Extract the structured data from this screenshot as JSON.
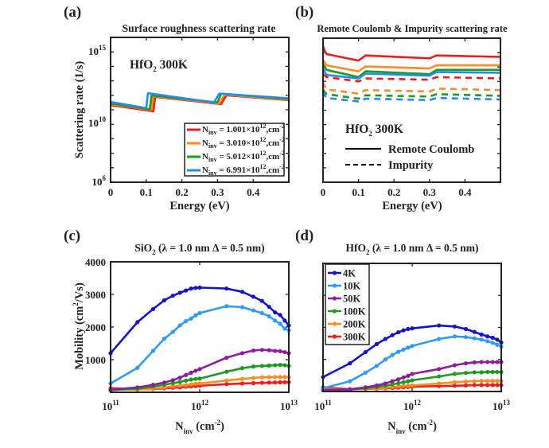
{
  "panels": {
    "a": {
      "label": "(a)",
      "title": "Surface roughness scattering rate",
      "annotation": {
        "main": "HfO",
        "sub": "2",
        "rest": " 300K"
      }
    },
    "b": {
      "label": "(b)",
      "title": "Remote Coulomb & Impurity scattering rate",
      "annotation": {
        "main": "HfO",
        "sub": "2",
        "rest": " 300K"
      }
    },
    "c": {
      "label": "(c)",
      "title": {
        "main": "SiO",
        "sub": "2",
        "rest": " (λ = 1.0 nm Δ = 0.5 nm)"
      }
    },
    "d": {
      "label": "(d)",
      "title": {
        "main": "HfO",
        "sub": "2",
        "rest": " (λ = 1.0 nm Δ = 0.5 nm)"
      }
    }
  },
  "chart_data": [
    {
      "panel": "a",
      "type": "line",
      "title": "Surface roughness scattering rate",
      "xlabel": "Energy (eV)",
      "ylabel": "Scattering rate (1/s)",
      "xlim": [
        0,
        0.5
      ],
      "ylim": [
        1000000.0,
        1e+16
      ],
      "yscale": "log",
      "xticks": [
        "0",
        "0.1",
        "0.2",
        "0.3",
        "0.4"
      ],
      "yticks": [
        {
          "base": "10",
          "exp": "6"
        },
        {
          "base": "10",
          "exp": "10"
        },
        {
          "base": "10",
          "exp": "15"
        }
      ],
      "legend_position": "bottom-right",
      "series": [
        {
          "name": {
            "main": "N",
            "sub": "inv",
            "value": " = 1.001×10",
            "exp": "12",
            "unit": ",cm",
            "unit_exp": "-2"
          },
          "color": "#ee1c1c",
          "x": [
            0,
            0.12,
            0.125,
            0.31,
            0.325,
            0.5
          ],
          "y": [
            210000000000.0,
            79000000000.0,
            790000000000.0,
            250000000000.0,
            1000000000000.0,
            470000000000.0
          ]
        },
        {
          "name": {
            "main": "N",
            "sub": "inv",
            "value": " = 3.010×10",
            "exp": "12",
            "unit": ",cm",
            "unit_exp": "-2"
          },
          "color": "#ff8a1e",
          "x": [
            0,
            0.115,
            0.12,
            0.305,
            0.32,
            0.5
          ],
          "y": [
            250000000000.0,
            100000000000.0,
            890000000000.0,
            280000000000.0,
            1100000000000.0,
            500000000000.0
          ]
        },
        {
          "name": {
            "main": "N",
            "sub": "inv",
            "value": " = 5.012×10",
            "exp": "12",
            "unit": ",cm",
            "unit_exp": "-2"
          },
          "color": "#1e9a1e",
          "x": [
            0,
            0.11,
            0.115,
            0.3,
            0.31,
            0.5
          ],
          "y": [
            280000000000.0,
            110000000000.0,
            1000000000000.0,
            320000000000.0,
            1300000000000.0,
            560000000000.0
          ]
        },
        {
          "name": {
            "main": "N",
            "sub": "inv",
            "value": " = 6.991×10",
            "exp": "12",
            "unit": ",cm",
            "unit_exp": "-2"
          },
          "color": "#1e8cf0",
          "x": [
            0,
            0.1,
            0.105,
            0.29,
            0.305,
            0.5
          ],
          "y": [
            350000000000.0,
            130000000000.0,
            1400000000000.0,
            320000000000.0,
            1300000000000.0,
            630000000000.0
          ]
        }
      ]
    },
    {
      "panel": "b",
      "type": "line",
      "title": "Remote Coulomb & Impurity scattering rate",
      "xlabel": "Energy (eV)",
      "xlim": [
        0,
        0.5
      ],
      "ylim": [
        1000000.0,
        1e+16
      ],
      "yscale": "log",
      "xticks": [
        "0",
        "0.1",
        "0.2",
        "0.3",
        "0.4"
      ],
      "legend": [
        "Remote Coulomb",
        "Impurity"
      ],
      "legend_position": "bottom-left",
      "x": [
        0,
        0.005,
        0.01,
        0.1,
        0.12,
        0.3,
        0.32,
        0.5
      ],
      "series": [
        {
          "kind": "Remote Coulomb",
          "color": "#ee1c1c",
          "y": [
            2800000000000000.0,
            1300000000000000.0,
            790000000000000.0,
            280000000000000.0,
            630000000000000.0,
            400000000000000.0,
            630000000000000.0,
            500000000000000.0
          ]
        },
        {
          "kind": "Remote Coulomb",
          "color": "#ff8a1e",
          "y": [
            320000000000000.0,
            200000000000000.0,
            130000000000000.0,
            50000000000000.0,
            110000000000000.0,
            79000000000000.0,
            130000000000000.0,
            130000000000000.0
          ]
        },
        {
          "kind": "Remote Coulomb",
          "color": "#1e9a1e",
          "y": [
            160000000000000.0,
            100000000000000.0,
            63000000000000.0,
            20000000000000.0,
            50000000000000.0,
            32000000000000.0,
            63000000000000.0,
            63000000000000.0
          ]
        },
        {
          "kind": "Remote Coulomb",
          "color": "#1e8cf0",
          "y": [
            89000000000000.0,
            45000000000000.0,
            28000000000000.0,
            16000000000000.0,
            35000000000000.0,
            25000000000000.0,
            45000000000000.0,
            40000000000000.0
          ]
        },
        {
          "kind": "Impurity",
          "color": "#ee1c1c",
          "y": [
            32000000000000.0,
            25000000000000.0,
            20000000000000.0,
            10000000000000.0,
            16000000000000.0,
            13000000000000.0,
            20000000000000.0,
            16000000000000.0
          ]
        },
        {
          "kind": "Impurity",
          "color": "#ff8a1e",
          "y": [
            8900000000000.0,
            4500000000000.0,
            2800000000000.0,
            1400000000000.0,
            2500000000000.0,
            2000000000000.0,
            3200000000000.0,
            2500000000000.0
          ]
        },
        {
          "kind": "Impurity",
          "color": "#1e9a1e",
          "y": [
            2800000000000.0,
            1800000000000.0,
            1300000000000.0,
            630000000000.0,
            1100000000000.0,
            890000000000.0,
            1300000000000.0,
            1000000000000.0
          ]
        },
        {
          "kind": "Impurity",
          "color": "#1e8cf0",
          "y": [
            2000000000000.0,
            1000000000000.0,
            710000000000.0,
            400000000000.0,
            630000000000.0,
            500000000000.0,
            710000000000.0,
            560000000000.0
          ]
        }
      ]
    },
    {
      "panel": "c",
      "type": "line",
      "xlabel": {
        "main": "N",
        "sub": "inv",
        "rest": " (cm",
        "exp": "-2",
        "close": ")"
      },
      "ylabel": {
        "main": "Mobility (cm",
        "exp": "2",
        "rest": "/Vs)"
      },
      "xscale": "log",
      "xlim": [
        100000000000.0,
        10000000000000.0
      ],
      "ylim": [
        0,
        4000
      ],
      "xticks": [
        {
          "base": "10",
          "exp": "11"
        },
        {
          "base": "10",
          "exp": "12"
        },
        {
          "base": "10",
          "exp": "13"
        }
      ],
      "yticks": [
        "1000",
        "2000",
        "3000",
        "4000"
      ],
      "x": [
        100000000000.0,
        200000000000.0,
        300000000000.0,
        400000000000.0,
        500000000000.0,
        600000000000.0,
        700000000000.0,
        800000000000.0,
        900000000000.0,
        1000000000000.0,
        2000000000000.0,
        3000000000000.0,
        4000000000000.0,
        5000000000000.0,
        6000000000000.0,
        7000000000000.0,
        8000000000000.0,
        9000000000000.0,
        10000000000000.0
      ],
      "series": [
        {
          "name": "4K",
          "color": "#1414c4",
          "y": [
            1200,
            2150,
            2550,
            2820,
            2960,
            3050,
            3120,
            3180,
            3200,
            3210,
            3180,
            3080,
            2930,
            2800,
            2620,
            2450,
            2370,
            2200,
            2050
          ]
        },
        {
          "name": "10K",
          "color": "#2e9cf2",
          "y": [
            270,
            750,
            1270,
            1640,
            1850,
            2050,
            2180,
            2260,
            2360,
            2430,
            2640,
            2610,
            2510,
            2430,
            2330,
            2200,
            2100,
            1950,
            1900
          ]
        },
        {
          "name": "50K",
          "color": "#8e1c9e",
          "y": [
            80,
            150,
            230,
            300,
            370,
            450,
            530,
            600,
            660,
            710,
            1060,
            1200,
            1280,
            1300,
            1290,
            1270,
            1260,
            1230,
            1200
          ]
        },
        {
          "name": "100K",
          "color": "#1e9a1e",
          "y": [
            60,
            110,
            170,
            230,
            280,
            320,
            360,
            390,
            410,
            420,
            630,
            740,
            790,
            810,
            820,
            830,
            840,
            830,
            810
          ]
        },
        {
          "name": "200K",
          "color": "#ff8a1e",
          "y": [
            100,
            80,
            110,
            150,
            180,
            200,
            220,
            240,
            260,
            270,
            360,
            410,
            440,
            460,
            465,
            470,
            470,
            470,
            460
          ]
        },
        {
          "name": "300K",
          "color": "#ee1c1c",
          "y": [
            130,
            90,
            100,
            120,
            140,
            150,
            170,
            180,
            190,
            200,
            250,
            270,
            280,
            290,
            295,
            300,
            305,
            310,
            310
          ]
        }
      ]
    },
    {
      "panel": "d",
      "type": "line",
      "xlabel": {
        "main": "N",
        "sub": "inv",
        "rest": " (cm",
        "exp": "-2",
        "close": ")"
      },
      "xscale": "log",
      "xlim": [
        100000000000.0,
        10000000000000.0
      ],
      "ylim": [
        0,
        4000
      ],
      "xticks": [
        {
          "base": "10",
          "exp": "11"
        },
        {
          "base": "10",
          "exp": "12"
        },
        {
          "base": "10",
          "exp": "13"
        }
      ],
      "legend_position": "top-left",
      "x": [
        100000000000.0,
        200000000000.0,
        300000000000.0,
        400000000000.0,
        500000000000.0,
        600000000000.0,
        700000000000.0,
        800000000000.0,
        900000000000.0,
        1000000000000.0,
        2000000000000.0,
        3000000000000.0,
        4000000000000.0,
        5000000000000.0,
        6000000000000.0,
        7000000000000.0,
        8000000000000.0,
        9000000000000.0,
        10000000000000.0
      ],
      "series": [
        {
          "name": "4K",
          "color": "#1414c4",
          "y": [
            450,
            880,
            1230,
            1480,
            1640,
            1760,
            1850,
            1910,
            1950,
            1970,
            2060,
            2030,
            1950,
            1860,
            1780,
            1720,
            1680,
            1620,
            1530
          ]
        },
        {
          "name": "10K",
          "color": "#2e9cf2",
          "y": [
            100,
            320,
            590,
            800,
            1000,
            1140,
            1240,
            1310,
            1370,
            1420,
            1640,
            1720,
            1700,
            1660,
            1620,
            1570,
            1520,
            1460,
            1400
          ]
        },
        {
          "name": "50K",
          "color": "#8e1c9e",
          "y": [
            50,
            70,
            130,
            190,
            250,
            320,
            380,
            440,
            490,
            550,
            700,
            820,
            880,
            910,
            920,
            920,
            920,
            920,
            920
          ]
        },
        {
          "name": "100K",
          "color": "#1e9a1e",
          "y": [
            40,
            60,
            100,
            140,
            180,
            220,
            260,
            290,
            320,
            350,
            470,
            550,
            580,
            600,
            600,
            610,
            610,
            610,
            610
          ]
        },
        {
          "name": "200K",
          "color": "#ff8a1e",
          "y": [
            80,
            60,
            80,
            100,
            120,
            140,
            160,
            170,
            180,
            190,
            250,
            290,
            310,
            320,
            330,
            330,
            330,
            330,
            330
          ]
        },
        {
          "name": "300K",
          "color": "#ee1c1c",
          "y": [
            130,
            70,
            80,
            90,
            100,
            110,
            120,
            130,
            140,
            150,
            170,
            180,
            190,
            200,
            200,
            200,
            200,
            200,
            200
          ]
        }
      ]
    }
  ]
}
